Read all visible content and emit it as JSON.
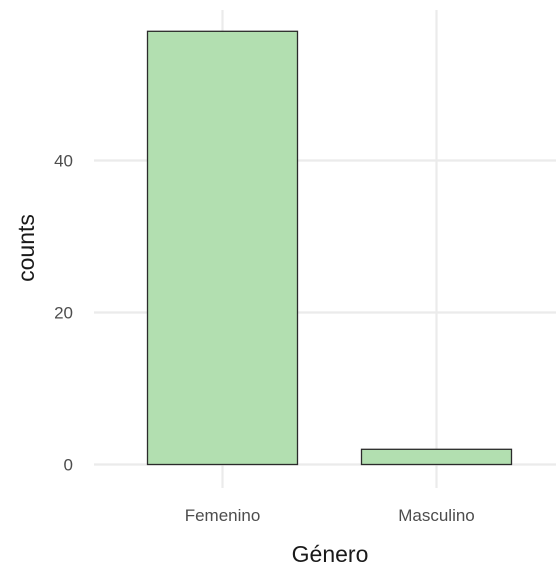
{
  "chart_data": {
    "type": "bar",
    "categories": [
      "Femenino",
      "Masculino"
    ],
    "values": [
      57,
      2
    ],
    "xlabel": "Género",
    "ylabel": "counts",
    "ylim": [
      -1.5,
      59.5
    ],
    "yticks": [
      0,
      20,
      40
    ],
    "grid": true,
    "legend": "none",
    "bar_color": "#b2dfb0",
    "bar_outline_color": "#2b2b2b",
    "grid_color": "#ebebeb"
  }
}
